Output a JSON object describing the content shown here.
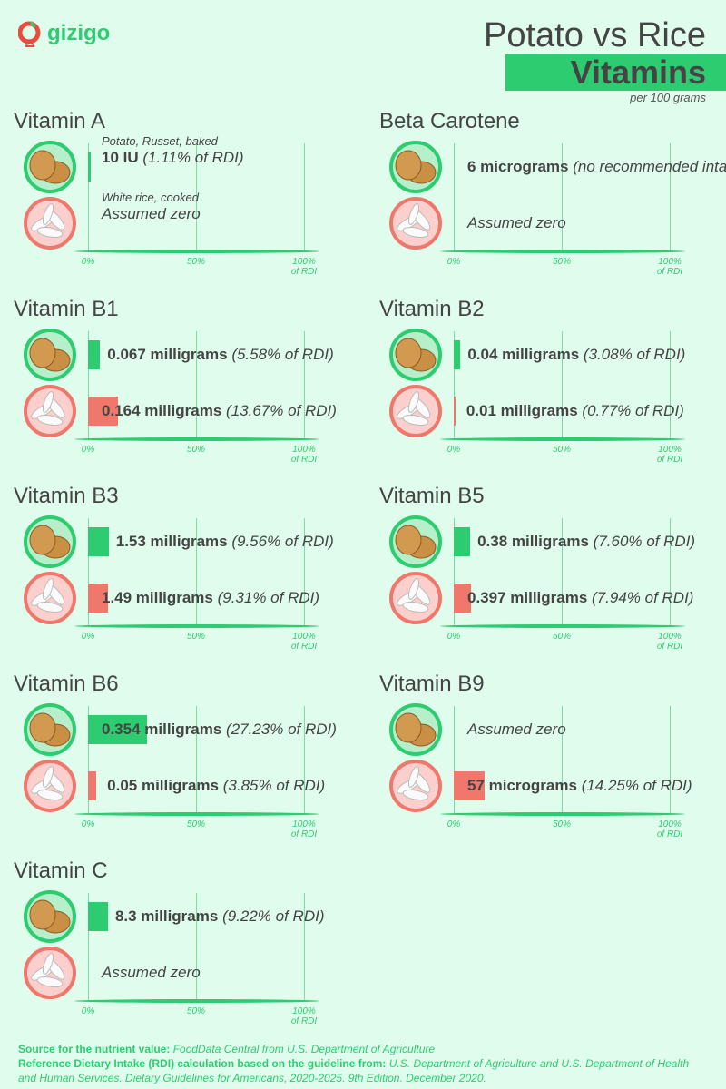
{
  "header": {
    "logo": "gizigo",
    "title": "Potato vs Rice",
    "subtitle": "Vitamins",
    "unit_note": "per 100 grams"
  },
  "colors": {
    "potato": "#2ecc71",
    "rice": "#f0776c",
    "background": "#e0fcec",
    "text": "#444444"
  },
  "foods": {
    "potato": "Potato, Russet, baked",
    "rice": "White rice, cooked"
  },
  "axis": {
    "ticks": [
      "0%",
      "50%",
      "100%"
    ],
    "suffix": "of RDI"
  },
  "chart_data": {
    "type": "bar",
    "xlim": [
      0,
      100
    ],
    "panels": [
      {
        "title": "Vitamin A",
        "potato": {
          "amount": "10 IU",
          "pct": 1.11,
          "note": "(1.11% of RDI)"
        },
        "rice": {
          "amount": "",
          "pct": 0,
          "note": "Assumed zero"
        },
        "show_food_names": true
      },
      {
        "title": "Beta Carotene",
        "potato": {
          "amount": "6 micrograms",
          "pct": 0,
          "note": "(no recommended intake)"
        },
        "rice": {
          "amount": "",
          "pct": 0,
          "note": "Assumed zero"
        }
      },
      {
        "title": "Vitamin B1",
        "potato": {
          "amount": "0.067 milligrams",
          "pct": 5.58,
          "note": "(5.58% of RDI)"
        },
        "rice": {
          "amount": "0.164 milligrams",
          "pct": 13.67,
          "note": "(13.67% of RDI)"
        }
      },
      {
        "title": "Vitamin B2",
        "potato": {
          "amount": "0.04 milligrams",
          "pct": 3.08,
          "note": "(3.08% of RDI)"
        },
        "rice": {
          "amount": "0.01 milligrams",
          "pct": 0.77,
          "note": "(0.77% of RDI)"
        }
      },
      {
        "title": "Vitamin B3",
        "potato": {
          "amount": "1.53 milligrams",
          "pct": 9.56,
          "note": "(9.56% of RDI)"
        },
        "rice": {
          "amount": "1.49 milligrams",
          "pct": 9.31,
          "note": "(9.31% of RDI)"
        }
      },
      {
        "title": "Vitamin B5",
        "potato": {
          "amount": "0.38 milligrams",
          "pct": 7.6,
          "note": "(7.60% of RDI)"
        },
        "rice": {
          "amount": "0.397 milligrams",
          "pct": 7.94,
          "note": "(7.94% of RDI)"
        }
      },
      {
        "title": "Vitamin B6",
        "potato": {
          "amount": "0.354 milligrams",
          "pct": 27.23,
          "note": "(27.23% of RDI)"
        },
        "rice": {
          "amount": "0.05 milligrams",
          "pct": 3.85,
          "note": "(3.85% of RDI)"
        }
      },
      {
        "title": "Vitamin B9",
        "potato": {
          "amount": "",
          "pct": 0,
          "note": "Assumed zero"
        },
        "rice": {
          "amount": "57 micrograms",
          "pct": 14.25,
          "note": "(14.25% of RDI)"
        }
      },
      {
        "title": "Vitamin C",
        "potato": {
          "amount": "8.3 milligrams",
          "pct": 9.22,
          "note": "(9.22% of RDI)"
        },
        "rice": {
          "amount": "",
          "pct": 0,
          "note": "Assumed zero"
        }
      }
    ]
  },
  "footer": {
    "source_label": "Source for the nutrient value:",
    "source_text": "FoodData Central from U.S. Department of Agriculture",
    "rdi_label": "Reference Dietary Intake (RDI) calculation based on the guideline from:",
    "rdi_text": "U.S. Department of Agriculture and U.S. Department of Health and Human Services. Dietary Guidelines for Americans, 2020-2025. 9th Edition. December 2020."
  }
}
